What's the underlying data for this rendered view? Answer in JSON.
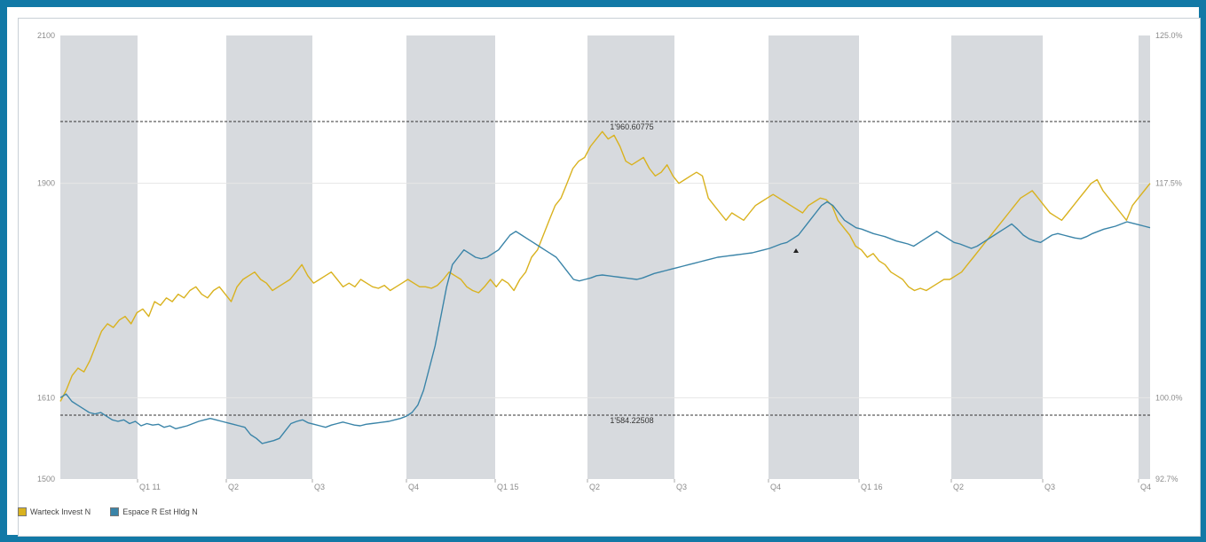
{
  "chart_data": {
    "type": "line",
    "x_labels": [
      "Q1 11",
      "Q2",
      "Q3",
      "Q4",
      "Q1 15",
      "Q2",
      "Q3",
      "Q4",
      "Q1 16",
      "Q2",
      "Q3",
      "Q4"
    ],
    "y_left_ticks": [
      "2100",
      "1900",
      "1610",
      "1500"
    ],
    "y_right_ticks": [
      "125.0%",
      "117.5%",
      "100.0%",
      "92.7%"
    ],
    "reference_lines": [
      {
        "label": "1'960.60775",
        "value": 1960.6
      },
      {
        "label": "1'584.22508",
        "value": 1584.2
      }
    ],
    "series": [
      {
        "name": "Warteck Invest N",
        "color": "#d9b21f",
        "values": [
          1605,
          1620,
          1640,
          1650,
          1645,
          1660,
          1680,
          1700,
          1710,
          1705,
          1715,
          1720,
          1710,
          1725,
          1730,
          1720,
          1740,
          1735,
          1745,
          1740,
          1750,
          1745,
          1755,
          1760,
          1750,
          1745,
          1755,
          1760,
          1750,
          1740,
          1760,
          1770,
          1775,
          1780,
          1770,
          1765,
          1755,
          1760,
          1765,
          1770,
          1780,
          1790,
          1775,
          1765,
          1770,
          1775,
          1780,
          1770,
          1760,
          1765,
          1760,
          1770,
          1765,
          1760,
          1758,
          1762,
          1755,
          1760,
          1765,
          1770,
          1765,
          1760,
          1760,
          1758,
          1762,
          1770,
          1780,
          1775,
          1770,
          1760,
          1755,
          1752,
          1760,
          1770,
          1760,
          1770,
          1765,
          1755,
          1770,
          1780,
          1800,
          1810,
          1830,
          1850,
          1870,
          1880,
          1900,
          1920,
          1930,
          1935,
          1950,
          1960,
          1970,
          1960,
          1965,
          1950,
          1930,
          1925,
          1930,
          1935,
          1920,
          1910,
          1915,
          1925,
          1910,
          1900,
          1905,
          1910,
          1915,
          1910,
          1880,
          1870,
          1860,
          1850,
          1860,
          1855,
          1850,
          1860,
          1870,
          1875,
          1880,
          1885,
          1880,
          1875,
          1870,
          1865,
          1860,
          1870,
          1875,
          1880,
          1878,
          1870,
          1850,
          1840,
          1830,
          1815,
          1810,
          1800,
          1805,
          1795,
          1790,
          1780,
          1775,
          1770,
          1760,
          1755,
          1758,
          1755,
          1760,
          1765,
          1770,
          1770,
          1775,
          1780,
          1790,
          1800,
          1810,
          1820,
          1830,
          1840,
          1850,
          1860,
          1870,
          1880,
          1885,
          1890,
          1880,
          1870,
          1860,
          1855,
          1850,
          1860,
          1870,
          1880,
          1890,
          1900,
          1905,
          1890,
          1880,
          1870,
          1860,
          1850,
          1870,
          1880,
          1890,
          1900
        ]
      },
      {
        "name": "Espace R Est Hldg N",
        "color": "#3a84a8",
        "values": [
          1610,
          1615,
          1605,
          1600,
          1595,
          1590,
          1588,
          1590,
          1585,
          1580,
          1578,
          1580,
          1575,
          1578,
          1572,
          1575,
          1573,
          1574,
          1570,
          1572,
          1568,
          1570,
          1572,
          1575,
          1578,
          1580,
          1582,
          1580,
          1578,
          1576,
          1574,
          1572,
          1570,
          1560,
          1555,
          1548,
          1550,
          1552,
          1555,
          1565,
          1575,
          1578,
          1580,
          1576,
          1574,
          1572,
          1570,
          1573,
          1575,
          1577,
          1575,
          1573,
          1572,
          1574,
          1575,
          1576,
          1577,
          1578,
          1580,
          1582,
          1585,
          1590,
          1600,
          1620,
          1650,
          1680,
          1720,
          1760,
          1790,
          1800,
          1810,
          1805,
          1800,
          1798,
          1800,
          1805,
          1810,
          1820,
          1830,
          1835,
          1830,
          1825,
          1820,
          1815,
          1810,
          1805,
          1800,
          1790,
          1780,
          1770,
          1768,
          1770,
          1772,
          1775,
          1776,
          1775,
          1774,
          1773,
          1772,
          1771,
          1770,
          1772,
          1775,
          1778,
          1780,
          1782,
          1784,
          1786,
          1788,
          1790,
          1792,
          1794,
          1796,
          1798,
          1800,
          1801,
          1802,
          1803,
          1804,
          1805,
          1806,
          1808,
          1810,
          1812,
          1815,
          1818,
          1820,
          1825,
          1830,
          1840,
          1850,
          1860,
          1870,
          1875,
          1870,
          1860,
          1850,
          1845,
          1840,
          1838,
          1835,
          1832,
          1830,
          1828,
          1825,
          1822,
          1820,
          1818,
          1815,
          1820,
          1825,
          1830,
          1835,
          1830,
          1825,
          1820,
          1818,
          1815,
          1812,
          1815,
          1820,
          1825,
          1830,
          1835,
          1840,
          1845,
          1838,
          1830,
          1825,
          1822,
          1820,
          1825,
          1830,
          1832,
          1830,
          1828,
          1826,
          1825,
          1828,
          1832,
          1835,
          1838,
          1840,
          1842,
          1845,
          1848,
          1846,
          1844,
          1842,
          1840
        ]
      }
    ],
    "x_range_note": ""
  }
}
